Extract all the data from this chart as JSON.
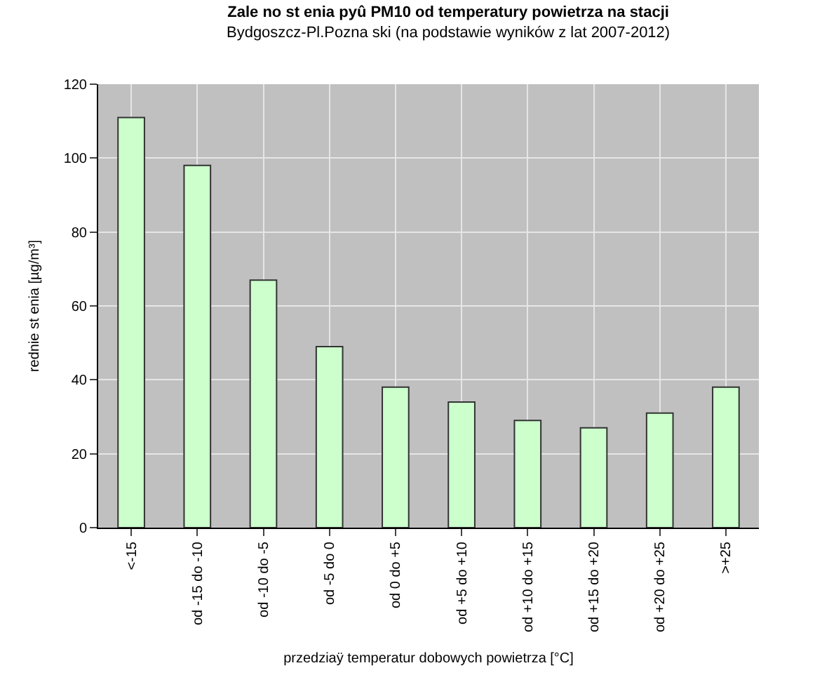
{
  "chart_data": {
    "type": "bar",
    "title": "Zale no st enia pyû PM10 od temperatury powietrza na stacji",
    "subtitle": "Bydgoszcz-Pl.Pozna ski (na podstawie wyników z lat 2007-2012)",
    "xlabel": "przedziaÿ temperatur dobowych powietrza [°C]",
    "ylabel": "rednie st enia [µg/m³]",
    "categories": [
      "<-15",
      "od -15 do -10",
      "od -10 do -5",
      "od -5 do 0",
      "od 0 do +5",
      "od +5 do +10",
      "od +10 do +15",
      "od +15 do +20",
      "od +20 do +25",
      ">+25"
    ],
    "values": [
      111,
      98,
      67,
      49,
      38,
      34,
      29,
      27,
      31,
      38
    ],
    "color": "#ccffcc",
    "ylim": [
      0,
      120
    ],
    "yticks": [
      0,
      20,
      40,
      60,
      80,
      100,
      120
    ],
    "grid": true
  }
}
